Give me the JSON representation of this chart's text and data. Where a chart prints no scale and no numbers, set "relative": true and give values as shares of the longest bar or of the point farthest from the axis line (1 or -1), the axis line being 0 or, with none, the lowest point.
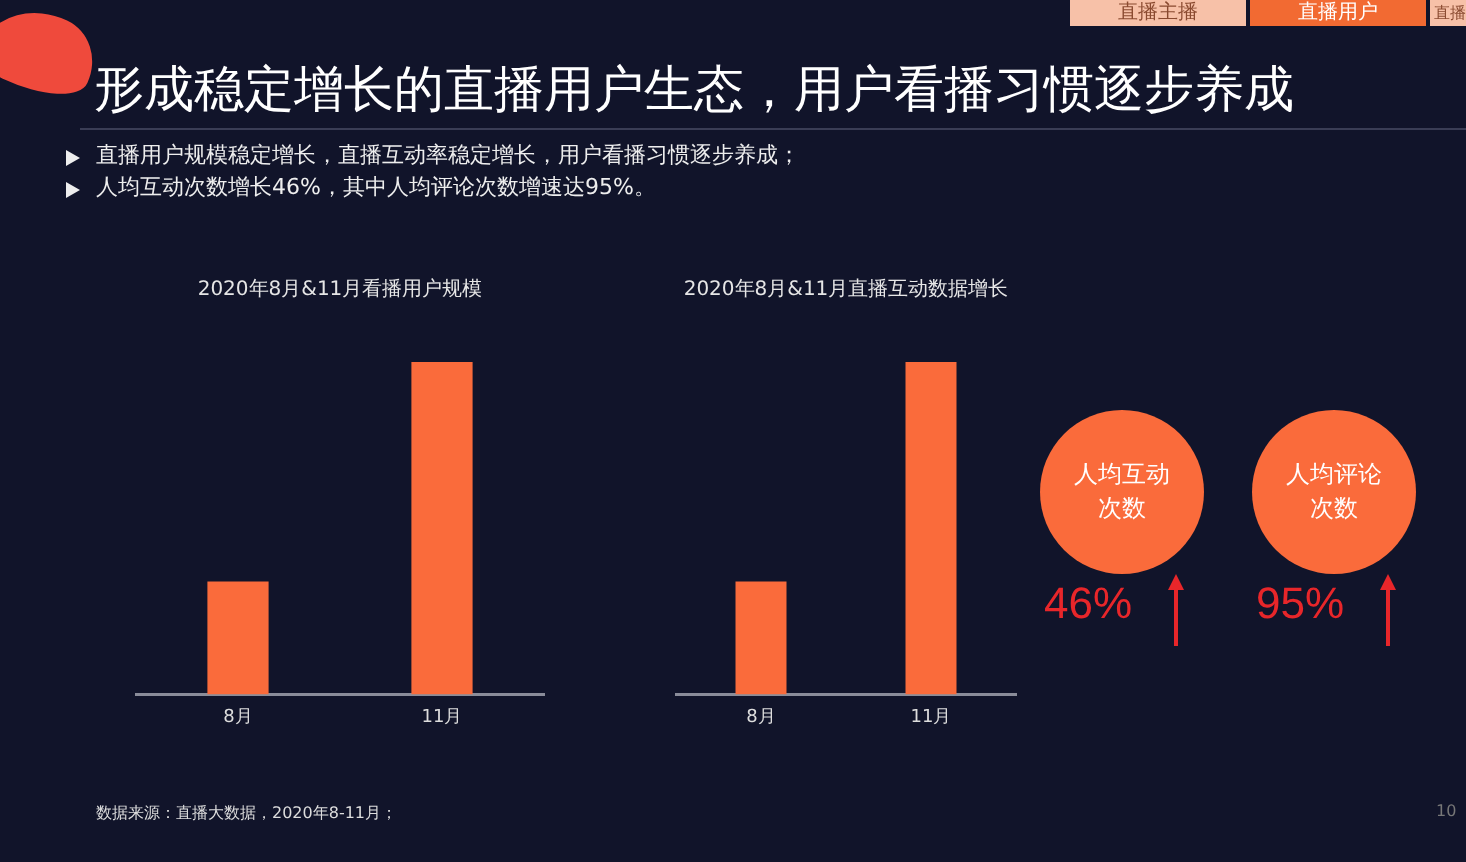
{
  "chart_data": [
    {
      "type": "other",
      "title": "形成稳定增长的直播用户生态，用户看播习惯逐步养成",
      "annotations": [
        "直播主播",
        "直播用户",
        "直播",
        "直播用户规模稳定增长，直播互动率稳定增长，用户看播习惯逐步养成；",
        "人均互动次数增长46%，其中人均评论次数增速达95%。",
        "数据来源：直播大数据，2020年8-11月；",
        "10"
      ]
    },
    {
      "type": "bar",
      "title": "2020年8月&11月看播用户规模",
      "categories": [
        "8月",
        "11月"
      ],
      "values": [
        0.34,
        1
      ],
      "color": "#fa6b3b",
      "relative": true
    },
    {
      "type": "bar",
      "title": "2020年8月&11月直播互动数据增长",
      "categories": [
        "8月",
        "11月"
      ],
      "values": [
        0.34,
        1
      ],
      "color": "#fa6b3b",
      "relative": true
    },
    {
      "type": "other",
      "annotations": [
        "人均互动次数",
        "46%",
        "人均评论次数",
        "95%"
      ],
      "color": "#fa6b3b"
    }
  ]
}
